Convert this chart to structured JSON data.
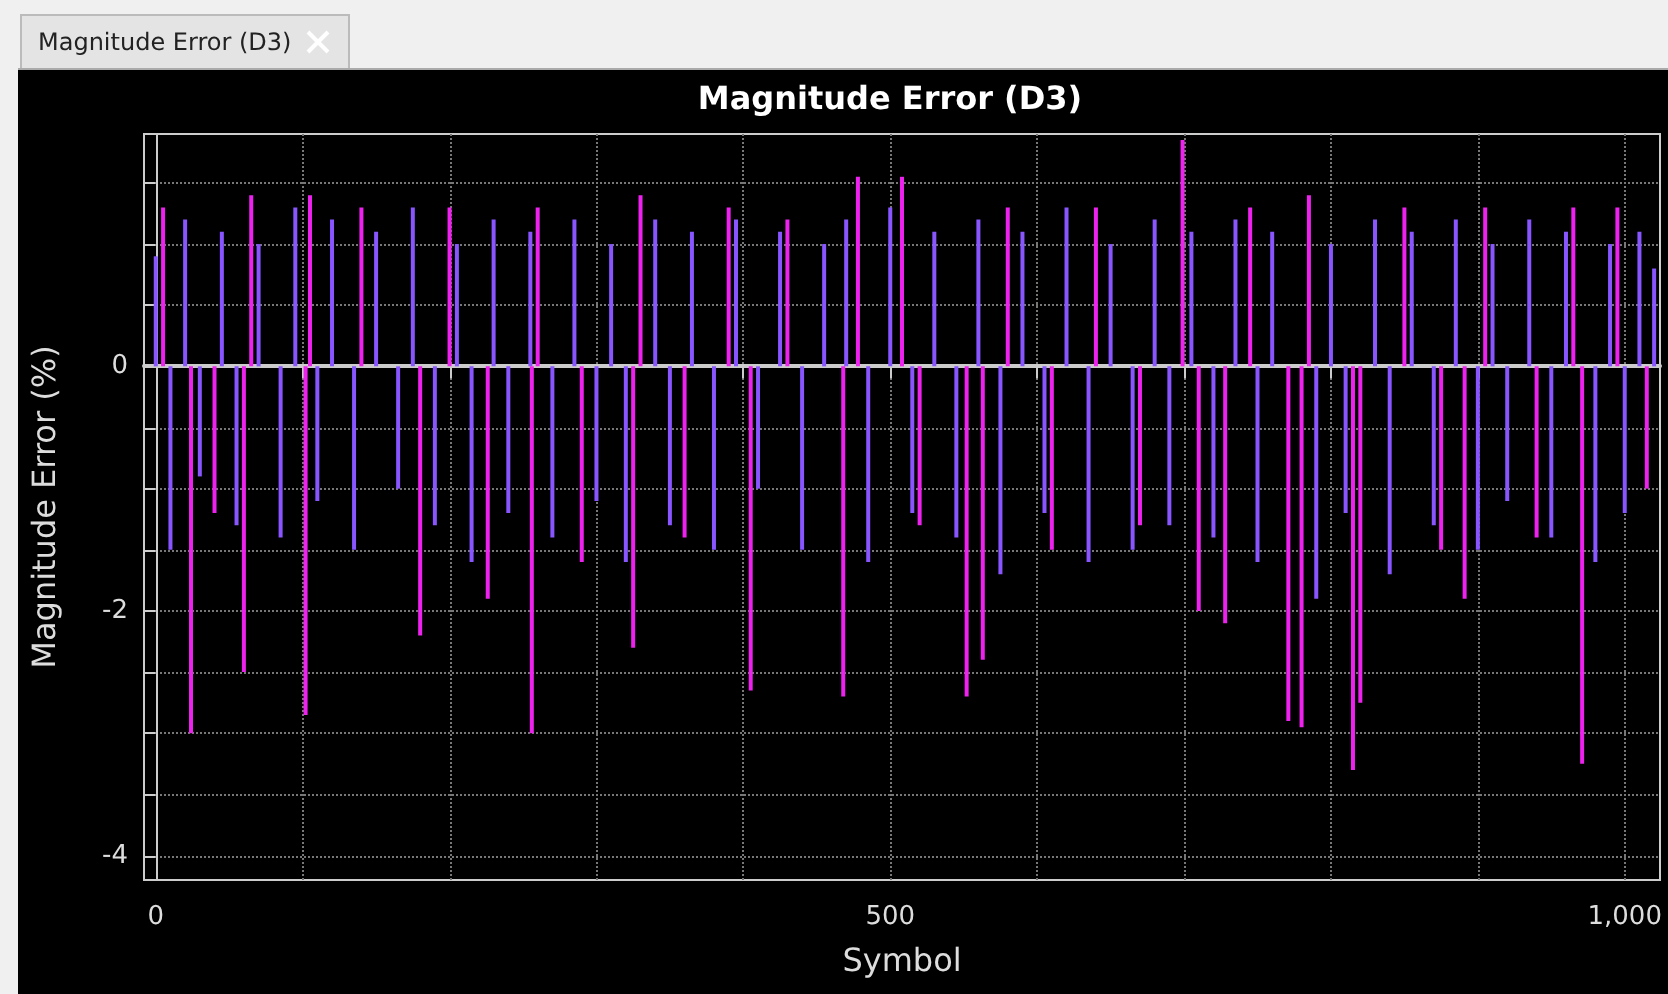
{
  "chart_data": {
    "type": "bar",
    "title": "Magnitude Error (D3)",
    "xlabel": "Symbol",
    "ylabel": "Magnitude Error (%)",
    "annotations": [
      "Magnitude Error (D3)"
    ],
    "xlim": [
      -8,
      1024
    ],
    "ylim": [
      -4.2,
      1.9
    ],
    "xticks": [
      0,
      {
        "value": 100,
        "label": null
      },
      {
        "value": 200,
        "label": null
      },
      {
        "value": 300,
        "label": null
      },
      {
        "value": 400,
        "label": null
      },
      500,
      {
        "value": 600,
        "label": null
      },
      {
        "value": 700,
        "label": null
      },
      {
        "value": 800,
        "label": null
      },
      {
        "value": 900,
        "label": null
      },
      {
        "value": 1000,
        "label": "1,000"
      }
    ],
    "yticks": [
      {
        "value": 1.5,
        "label": null
      },
      {
        "value": 1,
        "label": null
      },
      {
        "value": 0.5,
        "label": null
      },
      0,
      {
        "value": -0.5,
        "label": null
      },
      {
        "value": -1,
        "label": null
      },
      {
        "value": -1.5,
        "label": null
      },
      -2,
      {
        "value": -2.5,
        "label": null
      },
      {
        "value": -3,
        "label": null
      },
      {
        "value": -3.5,
        "label": null
      },
      -4
    ],
    "grid": true,
    "series": [
      {
        "color": "#8855ff",
        "x": [
          0,
          10,
          20,
          30,
          45,
          55,
          70,
          85,
          95,
          110,
          120,
          135,
          150,
          165,
          175,
          190,
          205,
          215,
          230,
          240,
          255,
          270,
          285,
          300,
          310,
          320,
          340,
          350,
          365,
          380,
          395,
          410,
          425,
          440,
          455,
          470,
          485,
          500,
          515,
          530,
          545,
          560,
          575,
          590,
          605,
          620,
          635,
          650,
          665,
          680,
          690,
          705,
          720,
          735,
          750,
          760,
          790,
          800,
          810,
          830,
          840,
          855,
          870,
          885,
          900,
          910,
          920,
          935,
          950,
          960,
          980,
          990,
          1000,
          1010,
          1020
        ],
        "values": [
          0.9,
          -1.5,
          1.2,
          -0.9,
          1.1,
          -1.3,
          1.0,
          -1.4,
          1.3,
          -1.1,
          1.2,
          -1.5,
          1.1,
          -1.0,
          1.3,
          -1.3,
          1.0,
          -1.6,
          1.2,
          -1.2,
          1.1,
          -1.4,
          1.2,
          -1.1,
          1.0,
          -1.6,
          1.2,
          -1.3,
          1.1,
          -1.5,
          1.2,
          -1.0,
          1.1,
          -1.5,
          1.0,
          1.2,
          -1.6,
          1.3,
          -1.2,
          1.1,
          -1.4,
          1.2,
          -1.7,
          1.1,
          -1.2,
          1.3,
          -1.6,
          1.0,
          -1.5,
          1.2,
          -1.3,
          1.1,
          -1.4,
          1.2,
          -1.6,
          1.1,
          -1.9,
          1.0,
          -1.2,
          1.2,
          -1.7,
          1.1,
          -1.3,
          1.2,
          -1.5,
          1.0,
          -1.1,
          1.2,
          -1.4,
          1.1,
          -1.6,
          1.0,
          -1.2,
          1.1,
          0.8
        ]
      },
      {
        "color": "#ee22ee",
        "x": [
          5,
          24,
          40,
          60,
          65,
          102,
          105,
          140,
          180,
          200,
          226,
          256,
          260,
          290,
          325,
          330,
          360,
          390,
          405,
          430,
          468,
          478,
          508,
          520,
          552,
          563,
          580,
          610,
          640,
          670,
          699,
          710,
          728,
          745,
          771,
          780,
          785,
          815,
          820,
          850,
          875,
          891,
          905,
          940,
          965,
          971,
          995,
          1015
        ],
        "values": [
          1.3,
          -3.0,
          -1.2,
          -2.5,
          1.4,
          -2.85,
          1.4,
          1.3,
          -2.2,
          1.3,
          -1.9,
          -3.0,
          1.3,
          -1.6,
          -2.3,
          1.4,
          -1.4,
          1.3,
          -2.65,
          1.2,
          -2.7,
          1.55,
          1.55,
          -1.3,
          -2.7,
          -2.4,
          1.3,
          -1.5,
          1.3,
          -1.3,
          1.85,
          -2.0,
          -2.1,
          1.3,
          -2.9,
          -2.95,
          1.4,
          -3.3,
          -2.75,
          1.3,
          -1.5,
          -1.9,
          1.3,
          -1.4,
          1.3,
          -3.25,
          1.3,
          -1.0
        ]
      }
    ]
  }
}
